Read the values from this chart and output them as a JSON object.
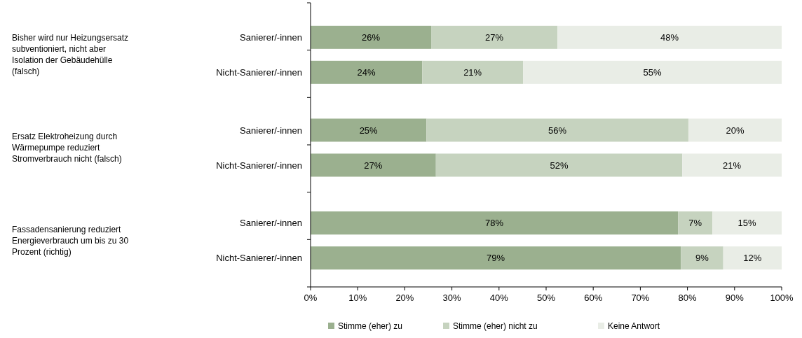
{
  "chart_data": {
    "type": "bar",
    "orientation": "horizontal",
    "stacked": true,
    "categories": [
      "Sanierer/-innen",
      "Nicht-Sanierer/-innen",
      "Sanierer/-innen",
      "Nicht-Sanierer/-innen",
      "Sanierer/-innen",
      "Nicht-Sanierer/-innen"
    ],
    "annotations": [
      "Bisher wird nur Heizungsersatz subventioniert, nicht aber Isolation der Gebäudehülle (falsch)",
      "Ersatz Elektroheizung durch Wärmepumpe reduziert Stromverbrauch nicht (falsch)",
      "Fassadensanierung reduziert Energieverbrauch um bis zu 30 Prozent (richtig)"
    ],
    "series": [
      {
        "name": "Stimme (eher) zu",
        "color": "#9bb08f",
        "values": [
          25.6,
          23.7,
          24.6,
          26.6,
          78.0,
          78.6
        ],
        "value_labels": [
          "26%",
          "24%",
          "25%",
          "27%",
          "78%",
          "79%"
        ]
      },
      {
        "name": "Stimme (eher) nicht zu",
        "color": "#c6d3bf",
        "values": [
          26.8,
          21.4,
          55.6,
          52.3,
          7.3,
          9.0
        ],
        "value_labels": [
          "27%",
          "21%",
          "56%",
          "52%",
          "7%",
          "9%"
        ]
      },
      {
        "name": "Keine Antwort",
        "color": "#e9ede6",
        "values": [
          47.6,
          54.9,
          19.8,
          21.1,
          14.7,
          12.4
        ],
        "value_labels": [
          "48%",
          "55%",
          "20%",
          "21%",
          "15%",
          "12%"
        ]
      }
    ],
    "xlim": [
      0,
      100
    ],
    "xticks": [
      {
        "value": 0,
        "label": "0%"
      },
      {
        "value": 10,
        "label": "10%"
      },
      {
        "value": 20,
        "label": "20%"
      },
      {
        "value": 30,
        "label": "30%"
      },
      {
        "value": 40,
        "label": "40%"
      },
      {
        "value": 50,
        "label": "50%"
      },
      {
        "value": 60,
        "label": "60%"
      },
      {
        "value": 70,
        "label": "70%"
      },
      {
        "value": 80,
        "label": "80%"
      },
      {
        "value": 90,
        "label": "90%"
      },
      {
        "value": 100,
        "label": "100%"
      }
    ],
    "legend": "bottom"
  }
}
